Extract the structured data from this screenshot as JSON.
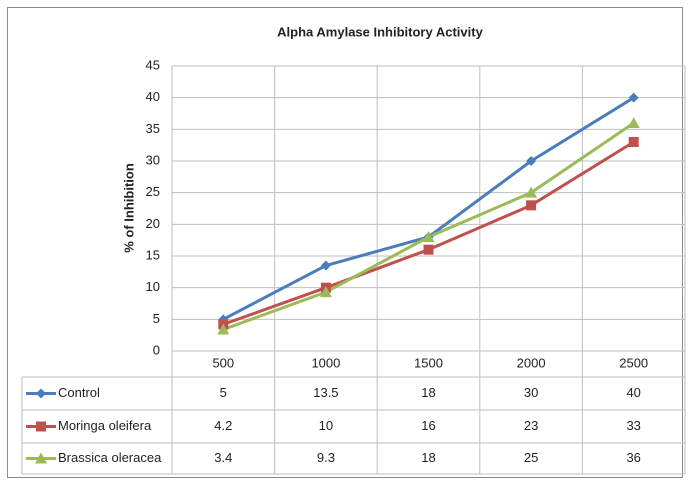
{
  "chart_data": {
    "type": "line",
    "title": "Alpha Amylase Inhibitory Activity",
    "y_label": "% of Inhibition",
    "categories": [
      "500",
      "1000",
      "1500",
      "2000",
      "2500"
    ],
    "series": [
      {
        "name": "Control",
        "color": "#4a7ebb",
        "marker": "diamond",
        "values": [
          5,
          13.5,
          18,
          30,
          40
        ]
      },
      {
        "name": "Moringa oleifera",
        "color": "#c0504d",
        "marker": "square",
        "values": [
          4.2,
          10,
          16,
          23,
          33
        ]
      },
      {
        "name": "Brassica oleracea",
        "color": "#9bbb59",
        "marker": "triangle",
        "values": [
          3.4,
          9.3,
          18,
          25,
          36
        ]
      }
    ],
    "ylim": [
      0,
      45
    ],
    "yticks": [
      0,
      5,
      10,
      15,
      20,
      25,
      30,
      35,
      40,
      45
    ],
    "grid": true,
    "data_table": true
  }
}
